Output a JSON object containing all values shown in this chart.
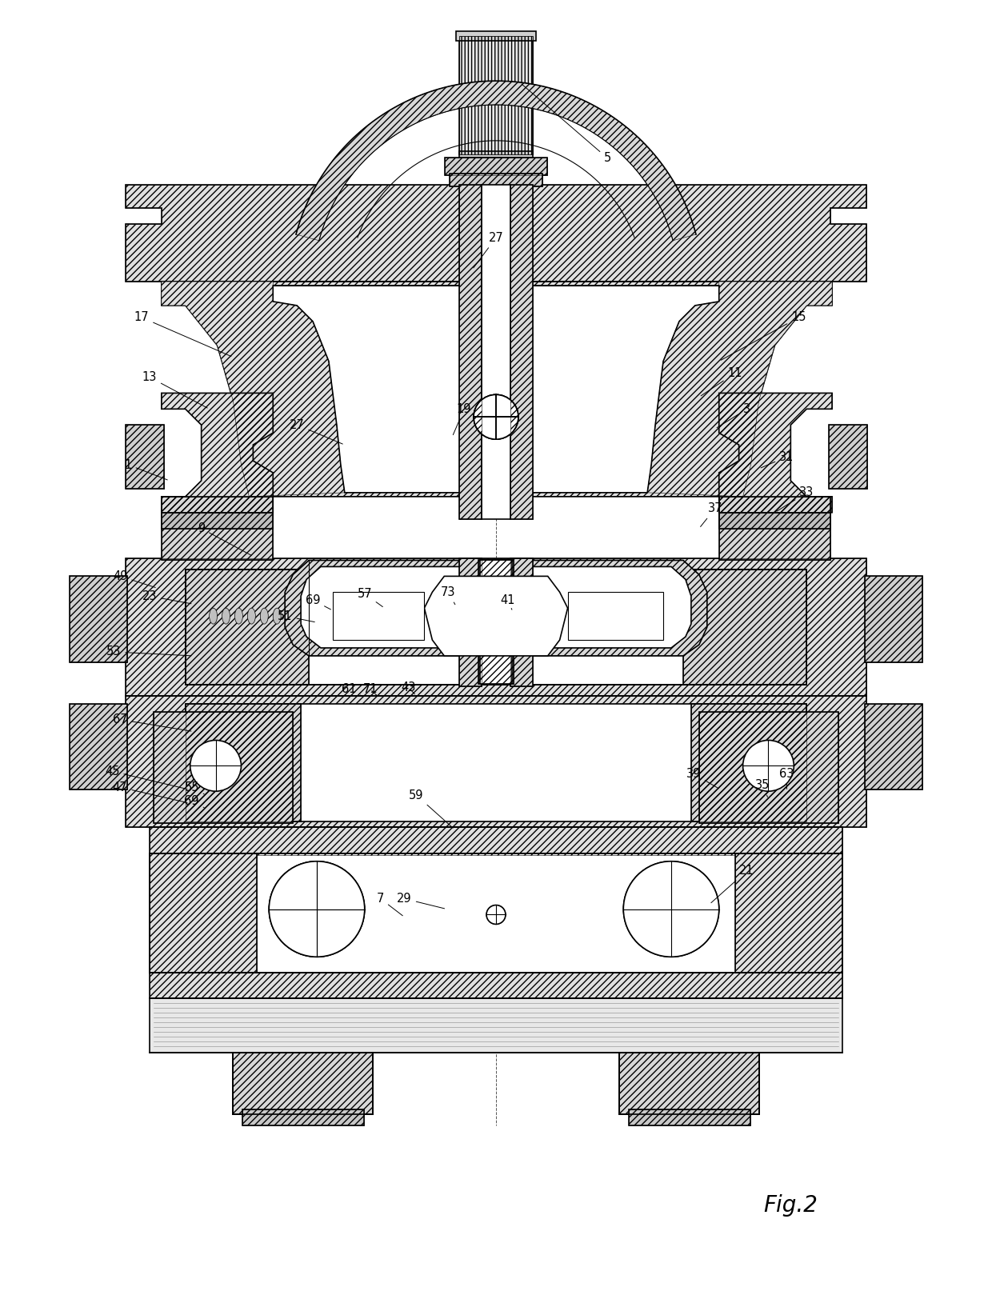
{
  "background_color": "#ffffff",
  "line_color": "#000000",
  "fig_width": 12.4,
  "fig_height": 16.14,
  "fig_label": "Fig.2",
  "labels": [
    [
      "5",
      760,
      195,
      650,
      100
    ],
    [
      "27",
      620,
      295,
      590,
      335
    ],
    [
      "17",
      175,
      395,
      290,
      445
    ],
    [
      "15",
      1000,
      395,
      900,
      450
    ],
    [
      "27",
      370,
      530,
      430,
      555
    ],
    [
      "19",
      580,
      510,
      565,
      545
    ],
    [
      "13",
      185,
      470,
      260,
      510
    ],
    [
      "11",
      920,
      465,
      875,
      495
    ],
    [
      "3",
      935,
      510,
      895,
      535
    ],
    [
      "1",
      158,
      580,
      210,
      600
    ],
    [
      "31",
      985,
      570,
      950,
      585
    ],
    [
      "9",
      250,
      660,
      315,
      695
    ],
    [
      "37",
      895,
      635,
      875,
      660
    ],
    [
      "33",
      1010,
      615,
      970,
      640
    ],
    [
      "49",
      148,
      720,
      195,
      735
    ],
    [
      "23",
      185,
      745,
      240,
      755
    ],
    [
      "69",
      390,
      750,
      415,
      763
    ],
    [
      "51",
      355,
      770,
      395,
      778
    ],
    [
      "57",
      455,
      742,
      480,
      760
    ],
    [
      "73",
      560,
      740,
      570,
      758
    ],
    [
      "41",
      635,
      750,
      640,
      762
    ],
    [
      "53",
      140,
      815,
      240,
      820
    ],
    [
      "67",
      148,
      900,
      240,
      915
    ],
    [
      "61",
      435,
      862,
      455,
      872
    ],
    [
      "71",
      462,
      862,
      473,
      872
    ],
    [
      "43",
      510,
      860,
      520,
      870
    ],
    [
      "45",
      138,
      965,
      235,
      988
    ],
    [
      "47",
      148,
      985,
      235,
      1005
    ],
    [
      "55",
      238,
      985,
      256,
      995
    ],
    [
      "69",
      238,
      1002,
      256,
      1012
    ],
    [
      "59",
      520,
      995,
      568,
      1038
    ],
    [
      "29",
      505,
      1125,
      558,
      1138
    ],
    [
      "7",
      475,
      1125,
      505,
      1148
    ],
    [
      "39",
      868,
      968,
      902,
      988
    ],
    [
      "35",
      955,
      982,
      962,
      1000
    ],
    [
      "63",
      985,
      968,
      985,
      990
    ],
    [
      "21",
      935,
      1090,
      888,
      1132
    ]
  ]
}
